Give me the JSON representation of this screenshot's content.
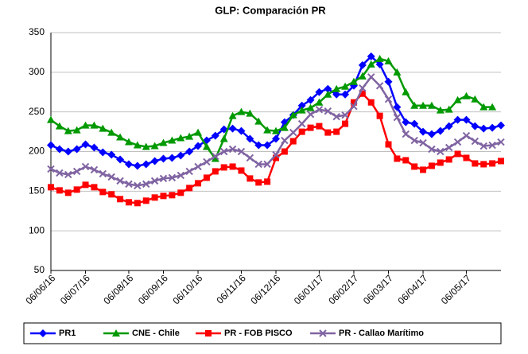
{
  "chart_data": {
    "type": "line",
    "title": "GLP: Comparación PR",
    "categories": [
      "06/06/16",
      null,
      null,
      null,
      "06/07/16",
      null,
      null,
      null,
      null,
      "06/08/16",
      null,
      null,
      null,
      "06/09/16",
      null,
      null,
      null,
      "06/10/16",
      null,
      null,
      null,
      null,
      "06/11/16",
      null,
      null,
      null,
      "06/12/16",
      null,
      null,
      null,
      null,
      "06/01/17",
      null,
      null,
      null,
      "06/02/17",
      null,
      null,
      null,
      "06/03/17",
      null,
      null,
      null,
      "06/04/17",
      null,
      null,
      null,
      null,
      "06/05/17",
      null,
      null,
      null,
      null
    ],
    "series": [
      {
        "name": "PR1",
        "color": "#0000ff",
        "marker": "diamond",
        "values": [
          208,
          203,
          200,
          203,
          209,
          205,
          199,
          196,
          190,
          184,
          182,
          184,
          188,
          191,
          192,
          195,
          200,
          207,
          214,
          220,
          228,
          229,
          226,
          216,
          208,
          208,
          216,
          237,
          246,
          258,
          265,
          275,
          279,
          272,
          272,
          283,
          309,
          320,
          310,
          288,
          256,
          237,
          235,
          225,
          222,
          226,
          232,
          240,
          240,
          232,
          229,
          230,
          233
        ]
      },
      {
        "name": "CNE - Chile",
        "color": "#009900",
        "marker": "triangle",
        "values": [
          240,
          232,
          226,
          227,
          233,
          233,
          229,
          224,
          218,
          212,
          208,
          206,
          207,
          211,
          214,
          217,
          219,
          224,
          206,
          191,
          216,
          245,
          250,
          248,
          238,
          227,
          226,
          230,
          246,
          252,
          255,
          262,
          272,
          279,
          282,
          288,
          295,
          310,
          317,
          314,
          300,
          275,
          258,
          258,
          258,
          252,
          253,
          265,
          270,
          266,
          256,
          256,
          null
        ]
      },
      {
        "name": "PR - FOB PISCO",
        "color": "#ff0000",
        "marker": "square",
        "values": [
          155,
          151,
          148,
          152,
          158,
          155,
          149,
          146,
          140,
          136,
          135,
          138,
          142,
          144,
          145,
          148,
          154,
          160,
          167,
          175,
          180,
          181,
          176,
          166,
          161,
          162,
          192,
          200,
          213,
          225,
          230,
          232,
          224,
          225,
          235,
          262,
          273,
          262,
          245,
          209,
          191,
          189,
          181,
          177,
          182,
          186,
          190,
          197,
          192,
          185,
          184,
          185,
          188
        ]
      },
      {
        "name": "PR - Callao Marítimo",
        "color": "#8064a2",
        "marker": "x",
        "values": [
          178,
          173,
          171,
          175,
          181,
          177,
          172,
          168,
          163,
          159,
          157,
          159,
          163,
          166,
          167,
          170,
          175,
          181,
          187,
          194,
          200,
          203,
          200,
          192,
          184,
          184,
          196,
          214,
          224,
          235,
          247,
          253,
          251,
          244,
          246,
          257,
          280,
          294,
          283,
          266,
          243,
          222,
          214,
          211,
          203,
          200,
          205,
          212,
          220,
          213,
          207,
          208,
          212
        ]
      }
    ],
    "ylim": [
      50,
      350
    ],
    "yticks": [
      50,
      100,
      150,
      200,
      250,
      300,
      350
    ],
    "grid": true,
    "legend": "bottom"
  }
}
